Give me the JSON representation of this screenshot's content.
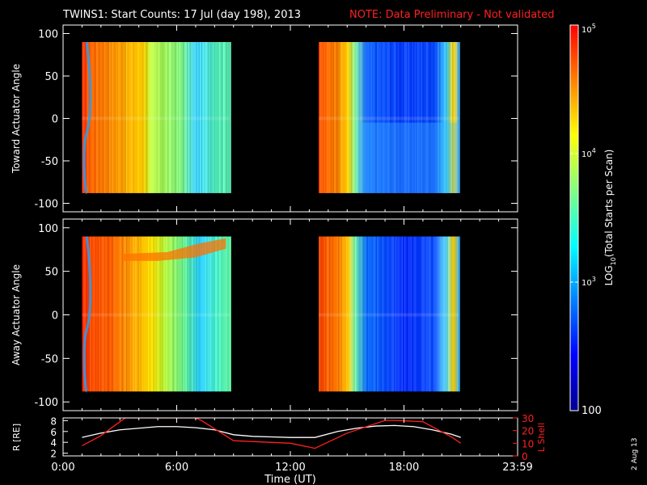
{
  "title": "TWINS1: Start Counts: 17 Jul (day 198), 2013",
  "note": "NOTE: Data Preliminary - Not validated",
  "date_stamp": "2 Aug 13",
  "colors": {
    "background": "#000000",
    "text": "#ffffff",
    "note": "#ff2020",
    "r_line": "#ffffff",
    "l_line": "#ff2020"
  },
  "chart_data": [
    {
      "type": "heatmap",
      "name": "toward-panel",
      "ylabel": "Toward Actuator Angle",
      "ylim": [
        -110,
        110
      ],
      "yticks": [
        "100",
        "50",
        "0",
        "-50",
        "-100"
      ],
      "ytick_values": [
        100,
        50,
        0,
        -50,
        -100
      ],
      "xlim": [
        0,
        24
      ],
      "segments": [
        {
          "start_hour": 1.0,
          "end_hour": 8.8,
          "angle_range": [
            -88,
            90
          ],
          "profile": [
            [
              1.0,
              "#ff3000"
            ],
            [
              1.4,
              "#ff6a00"
            ],
            [
              2.4,
              "#ff8a00"
            ],
            [
              4.2,
              "#ffd000"
            ],
            [
              4.6,
              "#b8f040"
            ],
            [
              6.2,
              "#7ff080"
            ],
            [
              7.0,
              "#40d0ff"
            ],
            [
              8.0,
              "#5af0c0"
            ],
            [
              8.8,
              "#60e8b0"
            ]
          ]
        },
        {
          "start_hour": 13.5,
          "end_hour": 20.9,
          "angle_range": [
            -88,
            90
          ],
          "profile": [
            [
              13.5,
              "#ff5000"
            ],
            [
              14.5,
              "#ff9000"
            ],
            [
              15.0,
              "#ffd000"
            ],
            [
              15.4,
              "#80f0a0"
            ],
            [
              16.0,
              "#1060ff"
            ],
            [
              18.0,
              "#0a40ff"
            ],
            [
              19.6,
              "#1050ff"
            ],
            [
              20.2,
              "#40d0ff"
            ],
            [
              20.6,
              "#ffd000"
            ],
            [
              20.9,
              "#30a0ff"
            ]
          ]
        }
      ]
    },
    {
      "type": "heatmap",
      "name": "away-panel",
      "ylabel": "Away Actuator Angle",
      "ylim": [
        -110,
        110
      ],
      "yticks": [
        "100",
        "50",
        "0",
        "-50",
        "-100"
      ],
      "ytick_values": [
        100,
        50,
        0,
        -50,
        -100
      ],
      "xlim": [
        0,
        24
      ],
      "segments": [
        {
          "start_hour": 1.0,
          "end_hour": 8.8,
          "angle_range": [
            -88,
            90
          ],
          "profile": [
            [
              1.0,
              "#ff3000"
            ],
            [
              1.4,
              "#ff5000"
            ],
            [
              2.4,
              "#ff6000"
            ],
            [
              3.6,
              "#ffa000"
            ],
            [
              4.6,
              "#ffe000"
            ],
            [
              5.4,
              "#b0f040"
            ],
            [
              6.4,
              "#60e890"
            ],
            [
              7.2,
              "#30d0ff"
            ],
            [
              8.2,
              "#50f0c0"
            ],
            [
              8.8,
              "#60f0a0"
            ]
          ]
        },
        {
          "start_hour": 13.5,
          "end_hour": 20.9,
          "angle_range": [
            -88,
            90
          ],
          "profile": [
            [
              13.5,
              "#ff5000"
            ],
            [
              14.5,
              "#ff8000"
            ],
            [
              15.0,
              "#ffc000"
            ],
            [
              15.4,
              "#70f0b0"
            ],
            [
              16.0,
              "#1070ff"
            ],
            [
              18.0,
              "#0a30ff"
            ],
            [
              19.6,
              "#1050ff"
            ],
            [
              20.2,
              "#60e0ff"
            ],
            [
              20.6,
              "#ffd000"
            ],
            [
              20.9,
              "#20a0ff"
            ]
          ]
        }
      ]
    },
    {
      "type": "line",
      "name": "orbit-panel",
      "xlabel": "Time (UT)",
      "xlim": [
        0,
        24
      ],
      "xticks": [
        "0:00",
        "6:00",
        "12:00",
        "18:00",
        "23:59"
      ],
      "xtick_values": [
        0,
        6,
        12,
        18,
        24
      ],
      "left_axis": {
        "label": "R [RE]",
        "ylim": [
          1.5,
          8.5
        ],
        "yticks": [
          "8",
          "6",
          "4",
          "2"
        ],
        "ytick_values": [
          8,
          6,
          4,
          2
        ]
      },
      "right_axis": {
        "label": "L Shell",
        "ylim": [
          0,
          30
        ],
        "yticks": [
          "30",
          "20",
          "10",
          "0"
        ],
        "ytick_values": [
          30,
          20,
          10,
          0
        ]
      },
      "series": [
        {
          "name": "R",
          "axis": "left",
          "x": [
            1.0,
            2.0,
            3.0,
            4.0,
            5.0,
            6.0,
            7.0,
            8.0,
            9.0,
            10.0,
            11.0,
            12.0,
            13.3,
            14.5,
            15.5,
            16.5,
            17.5,
            18.5,
            19.5,
            20.5,
            21.0
          ],
          "y": [
            4.9,
            5.7,
            6.3,
            6.6,
            6.9,
            6.9,
            6.7,
            6.3,
            5.4,
            5.1,
            5.0,
            4.9,
            4.9,
            6.0,
            6.6,
            7.0,
            7.1,
            6.9,
            6.3,
            5.5,
            4.9
          ]
        },
        {
          "name": "L Shell",
          "axis": "right",
          "x": [
            1.0,
            2.0,
            3.0,
            3.3,
            7.0,
            7.3,
            9.0,
            12.0,
            13.3,
            15.0,
            17.0,
            17.5,
            19.0,
            20.5,
            21.0
          ],
          "y": [
            8,
            16,
            27,
            30,
            30,
            28,
            12,
            10,
            6,
            18,
            28,
            28,
            27,
            15,
            10
          ]
        }
      ]
    },
    {
      "type": "colorbar",
      "name": "colorbar",
      "label_main": "LOG",
      "label_sub": "10",
      "label_rest": "(Total Starts per Scan)",
      "range": [
        100,
        100000
      ],
      "ticks": [
        {
          "value": 100000,
          "base": "10",
          "exp": "5"
        },
        {
          "value": 10000,
          "base": "10",
          "exp": "4"
        },
        {
          "value": 1000,
          "base": "10",
          "exp": "3"
        },
        {
          "value": 100,
          "base": "100",
          "exp": ""
        }
      ],
      "stops": [
        "#ff0000",
        "#ff8000",
        "#ffff00",
        "#80ff80",
        "#00ffff",
        "#0080ff",
        "#0000ff",
        "#000090"
      ]
    }
  ]
}
